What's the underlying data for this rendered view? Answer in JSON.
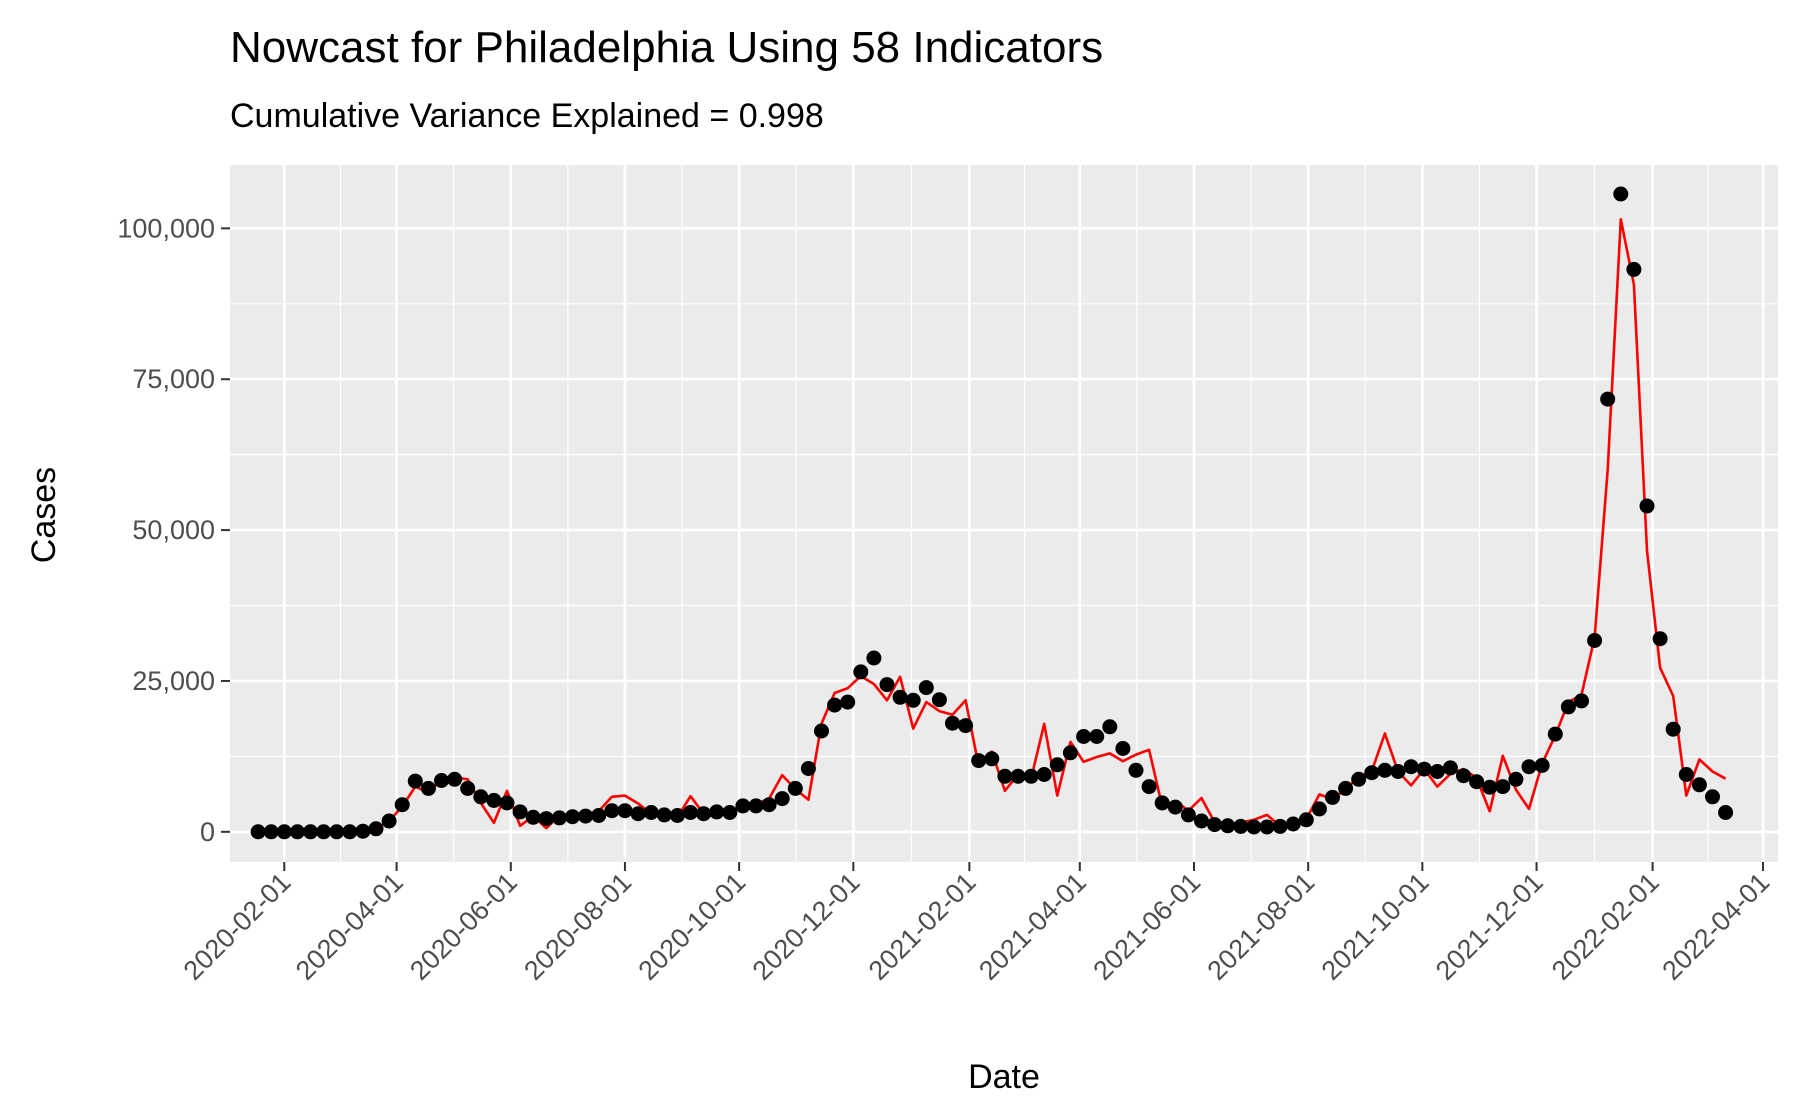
{
  "chart_data": {
    "type": "line",
    "title": "Nowcast for Philadelphia Using 58 Indicators",
    "subtitle": "Cumulative Variance Explained = 0.998",
    "xlabel": "Date",
    "ylabel": "Cases",
    "x_ticks": [
      "2020-02-01",
      "2020-04-01",
      "2020-06-01",
      "2020-08-01",
      "2020-10-01",
      "2020-12-01",
      "2021-02-01",
      "2021-04-01",
      "2021-06-01",
      "2021-08-01",
      "2021-10-01",
      "2021-12-01",
      "2022-02-01",
      "2022-04-01"
    ],
    "y_ticks": [
      0,
      25000,
      50000,
      75000,
      100000
    ],
    "y_tick_labels": [
      "0",
      "25,000",
      "50,000",
      "75,000",
      "100,000"
    ],
    "xlim": [
      "2020-01-03",
      "2022-04-09"
    ],
    "ylim": [
      -5000,
      110500
    ],
    "grid": true,
    "panel_background": "#ebebeb",
    "start_date": "2020-01-18",
    "interval_days": 7,
    "series": [
      {
        "role": "observed",
        "style": "points",
        "color": "#000000",
        "values": [
          0,
          0,
          0,
          0,
          0,
          0,
          0,
          0,
          100,
          500,
          1800,
          4500,
          8400,
          7200,
          8500,
          8700,
          7200,
          5800,
          5200,
          4800,
          3300,
          2400,
          2200,
          2300,
          2500,
          2600,
          2700,
          3500,
          3500,
          3000,
          3200,
          2800,
          2700,
          3200,
          3000,
          3300,
          3200,
          4300,
          4300,
          4500,
          5500,
          7200,
          10500,
          16700,
          21000,
          21500,
          26500,
          28800,
          24400,
          22300,
          21800,
          23900,
          21900,
          18000,
          17600,
          11800,
          12100,
          9200,
          9200,
          9200,
          9500,
          11100,
          13100,
          15800,
          15800,
          17400,
          13800,
          10200,
          7500,
          4800,
          4100,
          2800,
          1800,
          1200,
          1000,
          900,
          800,
          800,
          900,
          1300,
          2000,
          3800,
          5700,
          7200,
          8700,
          9800,
          10200,
          10000,
          10800,
          10400,
          10000,
          10600,
          9300,
          8300,
          7400,
          7500,
          8700,
          10800,
          11000,
          16200,
          20700,
          21700,
          31700,
          71700,
          105700,
          93200,
          54000,
          32000,
          17000,
          9500,
          7800,
          5800,
          3200
        ]
      },
      {
        "role": "nowcast",
        "style": "line",
        "color": "#ff0000",
        "values": [
          0,
          0,
          0,
          0,
          0,
          0,
          0,
          0,
          100,
          500,
          1800,
          4200,
          7500,
          6500,
          8600,
          9000,
          8700,
          4800,
          1500,
          6800,
          1000,
          2600,
          600,
          2700,
          2400,
          2900,
          3400,
          5800,
          6000,
          4700,
          3000,
          3300,
          2400,
          5900,
          3000,
          2400,
          3300,
          4300,
          4600,
          5500,
          9400,
          7100,
          5300,
          17900,
          23000,
          23800,
          25800,
          24500,
          21800,
          25700,
          17100,
          21500,
          20000,
          19400,
          21800,
          10900,
          13300,
          6800,
          9500,
          8800,
          17900,
          6000,
          14900,
          11600,
          12400,
          13000,
          11700,
          12800,
          13600,
          4200,
          5100,
          3500,
          5600,
          1600,
          900,
          1500,
          2000,
          2800,
          900,
          1300,
          2100,
          6200,
          5400,
          7100,
          9100,
          10100,
          16300,
          10000,
          7700,
          10400,
          7500,
          9600,
          10400,
          8900,
          3400,
          12600,
          7000,
          3800,
          11300,
          16000,
          21500,
          22700,
          32200,
          60000,
          101500,
          90700,
          46600,
          27200,
          22500,
          6000,
          12000,
          10000,
          8800
        ]
      }
    ]
  }
}
